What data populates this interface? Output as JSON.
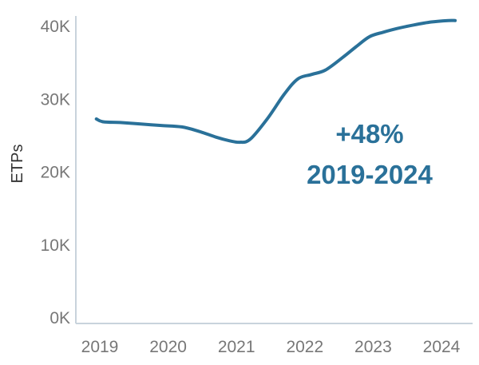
{
  "chart_data": {
    "type": "line",
    "title": "",
    "xlabel": "",
    "ylabel": "ETPs",
    "x_ticks": [
      "2019",
      "2020",
      "2021",
      "2022",
      "2023",
      "2024"
    ],
    "y_ticks": [
      "0K",
      "10K",
      "20K",
      "30K",
      "40K"
    ],
    "ylim": [
      0,
      42000
    ],
    "xlim": [
      2018.75,
      2024.5
    ],
    "grid": false,
    "line_color": "#2a7199",
    "axis_color": "#c8d3dc",
    "series": [
      {
        "x": [
          2018.95,
          2019.05,
          2019.3,
          2019.6,
          2019.9,
          2020.2,
          2020.45,
          2020.7,
          2020.9,
          2021.05,
          2021.2,
          2021.45,
          2021.7,
          2021.9,
          2022.1,
          2022.3,
          2022.55,
          2022.75,
          2022.95,
          2023.15,
          2023.35,
          2023.6,
          2023.85,
          2024.1,
          2024.2
        ],
        "values": [
          27300,
          26900,
          26800,
          26600,
          26400,
          26200,
          25600,
          24800,
          24300,
          24100,
          24500,
          27300,
          30700,
          32800,
          33400,
          34000,
          35700,
          37200,
          38600,
          39200,
          39700,
          40200,
          40600,
          40800,
          40800
        ]
      }
    ],
    "annotations": [
      {
        "text": "+48%",
        "color": "#2a7199"
      },
      {
        "text": "2019-2024",
        "color": "#2a7199"
      }
    ]
  }
}
